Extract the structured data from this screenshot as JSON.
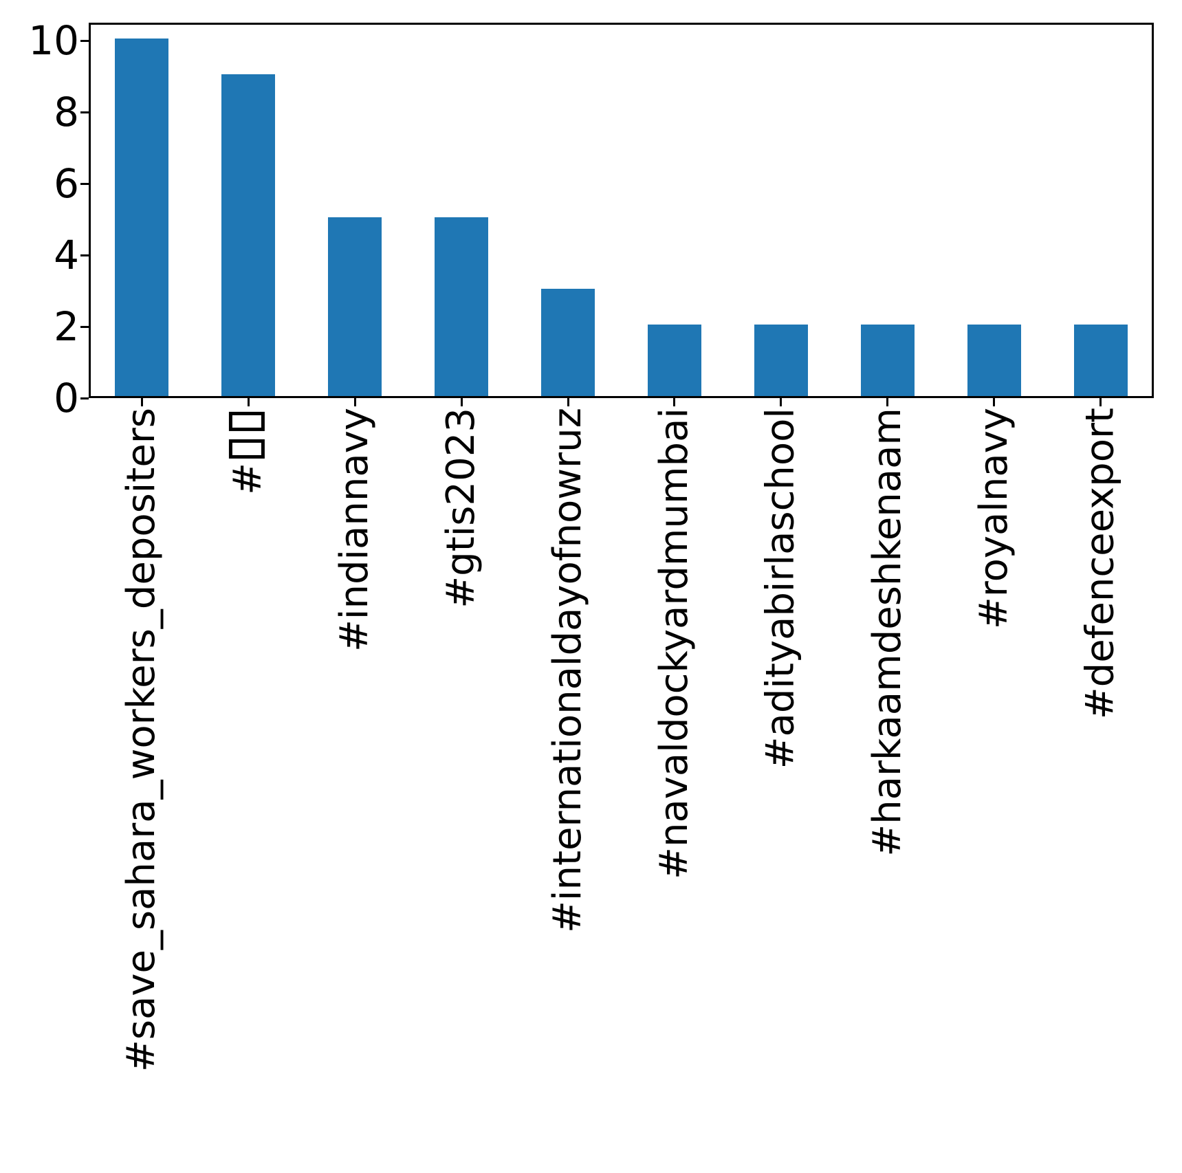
{
  "chart_data": {
    "type": "bar",
    "categories": [
      "#save_sahara_workers_depositers",
      "#□□",
      "#indiannavy",
      "#gtis2023",
      "#internationaldayofnowruz",
      "#navaldockyardmumbai",
      "#adityabirlaschool",
      "#harkaamdeshkenaam",
      "#royalnavy",
      "#defenceexport"
    ],
    "values": [
      10,
      9,
      5,
      5,
      3,
      2,
      2,
      2,
      2,
      2
    ],
    "title": "",
    "xlabel": "",
    "ylabel": "",
    "ylim": [
      0,
      10.5
    ],
    "yticks": [
      "0",
      "2",
      "4",
      "6",
      "8",
      "10"
    ],
    "xtick_label_rotation_deg": 90,
    "grid": false,
    "legend_position": "none",
    "bar_color": "#1f77b4",
    "spine_color": "#000000",
    "background_color": "#ffffff"
  }
}
